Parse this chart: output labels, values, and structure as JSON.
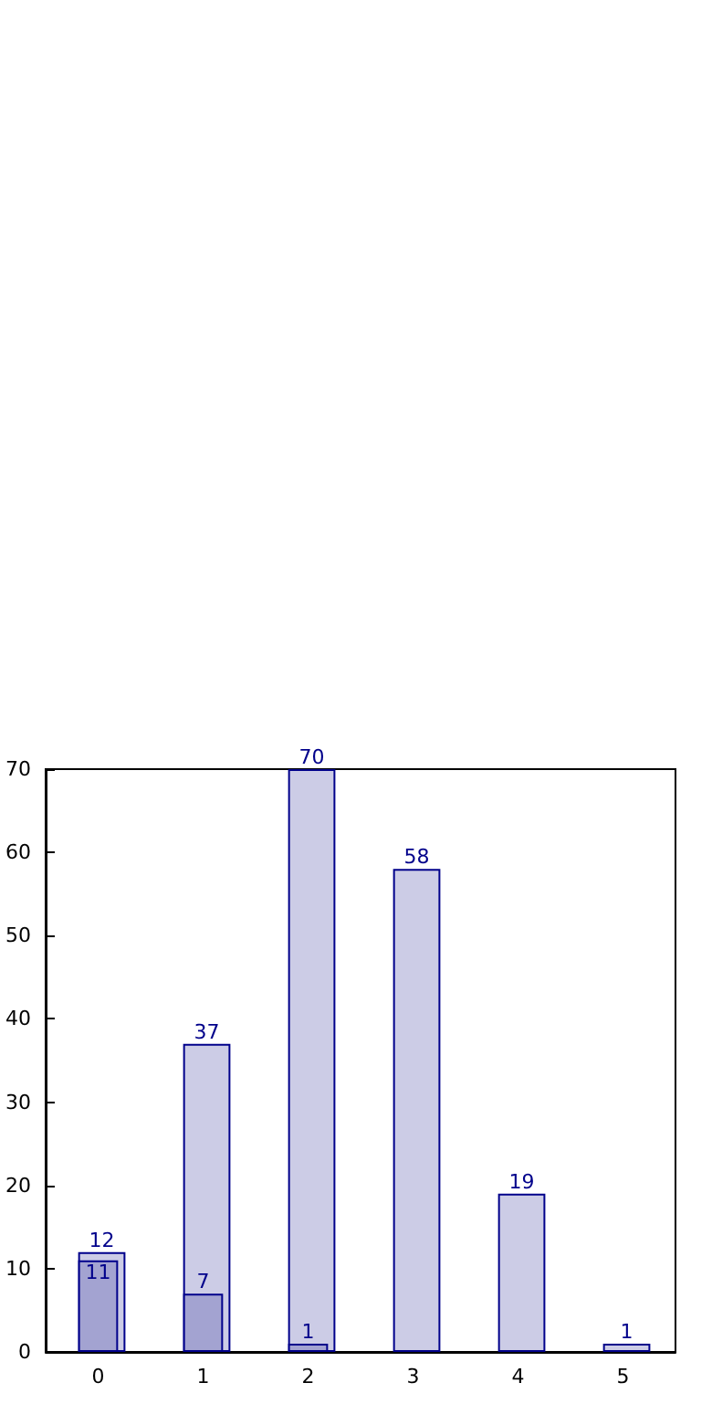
{
  "chart_data": {
    "type": "bar",
    "categories": [
      "0",
      "1",
      "2",
      "3",
      "4",
      "5"
    ],
    "series": [
      {
        "color": "#cccce6",
        "values": [
          12,
          37,
          70,
          58,
          19,
          1
        ]
      },
      {
        "color": "#a3a3d1",
        "values": [
          11,
          7,
          1,
          null,
          null,
          null
        ]
      }
    ],
    "ylim": [
      0,
      70
    ],
    "yticks": [
      0,
      10,
      20,
      30,
      40,
      50,
      60,
      70
    ],
    "data_labels": true
  }
}
